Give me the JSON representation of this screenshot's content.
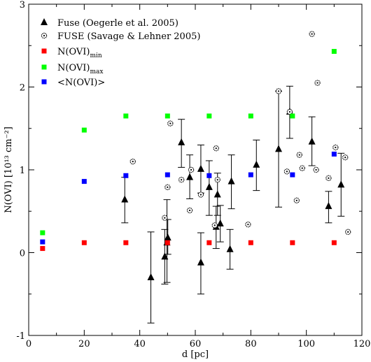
{
  "chart_data": {
    "type": "scatter",
    "xlabel": "d [pc]",
    "ylabel": "N(OVI) [10¹³ cm⁻²]",
    "xlim": [
      0,
      120
    ],
    "ylim": [
      -1,
      3
    ],
    "xticks": [
      0,
      20,
      40,
      60,
      80,
      100,
      120
    ],
    "yticks": [
      -1,
      0,
      1,
      2,
      3
    ],
    "grid": false,
    "legend_position": "top-left",
    "series": [
      {
        "name": "Fuse (Oegerle et al. 2005)",
        "marker": "triangle",
        "color": "#000000",
        "points": [
          {
            "x": 34.6,
            "y": 0.64,
            "lo": 0.36,
            "hi": 0.91
          },
          {
            "x": 44.0,
            "y": -0.3,
            "lo": -0.85,
            "hi": 0.25
          },
          {
            "x": 49.0,
            "y": -0.05,
            "lo": -0.38,
            "hi": 0.28
          },
          {
            "x": 49.8,
            "y": 0.12,
            "lo": -0.36,
            "hi": 0.64
          },
          {
            "x": 50.1,
            "y": 0.18,
            "lo": -0.02,
            "hi": 0.4
          },
          {
            "x": 55.0,
            "y": 1.33,
            "lo": 1.03,
            "hi": 1.61
          },
          {
            "x": 58.0,
            "y": 0.91,
            "lo": 0.65,
            "hi": 1.18
          },
          {
            "x": 62.0,
            "y": -0.12,
            "lo": -0.5,
            "hi": 0.24
          },
          {
            "x": 62.0,
            "y": 1.01,
            "lo": 0.72,
            "hi": 1.3
          },
          {
            "x": 65.0,
            "y": 0.79,
            "lo": 0.45,
            "hi": 1.11
          },
          {
            "x": 67.5,
            "y": 0.31,
            "lo": 0.05,
            "hi": 0.56
          },
          {
            "x": 68.0,
            "y": 0.7,
            "lo": 0.45,
            "hi": 0.96
          },
          {
            "x": 69.0,
            "y": 0.35,
            "lo": 0.13,
            "hi": 0.57
          },
          {
            "x": 72.5,
            "y": 0.04,
            "lo": -0.2,
            "hi": 0.28
          },
          {
            "x": 73.0,
            "y": 0.86,
            "lo": 0.53,
            "hi": 1.18
          },
          {
            "x": 82.0,
            "y": 1.06,
            "lo": 0.75,
            "hi": 1.36
          },
          {
            "x": 90.0,
            "y": 1.25,
            "lo": 0.55,
            "hi": 1.95
          },
          {
            "x": 94.0,
            "y": 1.7,
            "lo": 1.38,
            "hi": 2.01
          },
          {
            "x": 102.0,
            "y": 1.34,
            "lo": 1.05,
            "hi": 1.64
          },
          {
            "x": 108.0,
            "y": 0.56,
            "lo": 0.36,
            "hi": 0.74
          },
          {
            "x": 112.5,
            "y": 0.82,
            "lo": 0.44,
            "hi": 1.2
          }
        ]
      },
      {
        "name": "FUSE (Savage & Lehner 2005)",
        "marker": "dotted-circle",
        "color": "#000000",
        "points": [
          {
            "x": 37.5,
            "y": 1.1
          },
          {
            "x": 49.0,
            "y": 0.42
          },
          {
            "x": 50.0,
            "y": 0.79
          },
          {
            "x": 51.0,
            "y": 1.56
          },
          {
            "x": 55.0,
            "y": 0.88
          },
          {
            "x": 58.0,
            "y": 0.51
          },
          {
            "x": 58.5,
            "y": 1.0
          },
          {
            "x": 62.0,
            "y": 0.7
          },
          {
            "x": 67.0,
            "y": 0.33
          },
          {
            "x": 67.5,
            "y": 1.26
          },
          {
            "x": 68.0,
            "y": 0.88
          },
          {
            "x": 79.0,
            "y": 0.34
          },
          {
            "x": 90.0,
            "y": 1.95
          },
          {
            "x": 93.0,
            "y": 0.98
          },
          {
            "x": 94.0,
            "y": 1.7
          },
          {
            "x": 96.5,
            "y": 0.63
          },
          {
            "x": 97.5,
            "y": 1.18
          },
          {
            "x": 98.5,
            "y": 1.02
          },
          {
            "x": 102.0,
            "y": 2.64
          },
          {
            "x": 103.5,
            "y": 1.0
          },
          {
            "x": 104.0,
            "y": 2.05
          },
          {
            "x": 108.0,
            "y": 0.9
          },
          {
            "x": 110.5,
            "y": 1.27
          },
          {
            "x": 114.0,
            "y": 1.15
          },
          {
            "x": 115.0,
            "y": 0.25
          }
        ]
      },
      {
        "name": "N(OVI)",
        "name_sub": "min",
        "marker": "square",
        "color": "#ff0000",
        "points": [
          {
            "x": 5,
            "y": 0.05
          },
          {
            "x": 20,
            "y": 0.12
          },
          {
            "x": 35,
            "y": 0.12
          },
          {
            "x": 50,
            "y": 0.12
          },
          {
            "x": 65,
            "y": 0.12
          },
          {
            "x": 80,
            "y": 0.12
          },
          {
            "x": 95,
            "y": 0.12
          },
          {
            "x": 110,
            "y": 0.12
          }
        ]
      },
      {
        "name": "N(OVI)",
        "name_sub": "max",
        "marker": "square",
        "color": "#00ff00",
        "points": [
          {
            "x": 5,
            "y": 0.24
          },
          {
            "x": 20,
            "y": 1.48
          },
          {
            "x": 35,
            "y": 1.65
          },
          {
            "x": 50,
            "y": 1.65
          },
          {
            "x": 65,
            "y": 1.65
          },
          {
            "x": 80,
            "y": 1.65
          },
          {
            "x": 95,
            "y": 1.65
          },
          {
            "x": 110,
            "y": 2.43
          }
        ]
      },
      {
        "name": "<N(OVI)>",
        "marker": "square",
        "color": "#0000ff",
        "points": [
          {
            "x": 5,
            "y": 0.13
          },
          {
            "x": 20,
            "y": 0.86
          },
          {
            "x": 35,
            "y": 0.93
          },
          {
            "x": 50,
            "y": 0.94
          },
          {
            "x": 65,
            "y": 0.93
          },
          {
            "x": 80,
            "y": 0.94
          },
          {
            "x": 95,
            "y": 0.94
          },
          {
            "x": 110,
            "y": 1.19
          }
        ]
      }
    ]
  }
}
